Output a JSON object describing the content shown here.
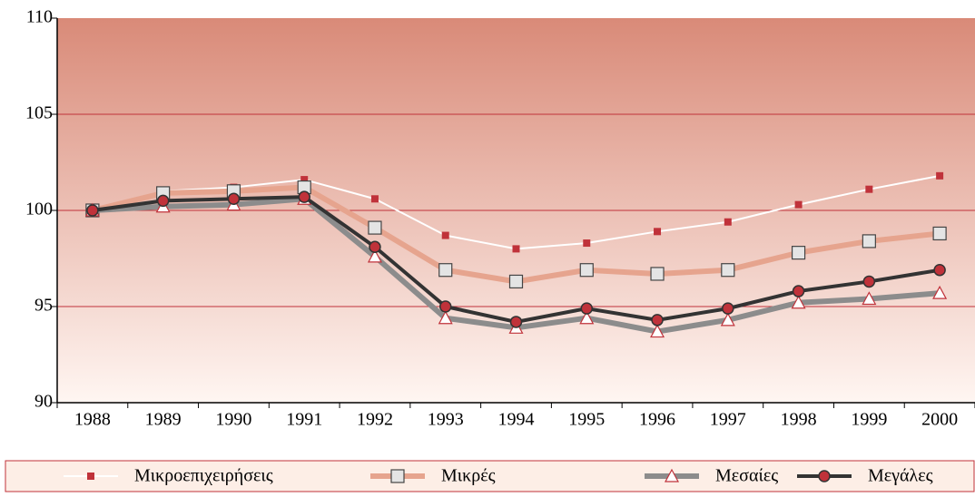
{
  "chart_data": {
    "type": "line",
    "categories": [
      "1988",
      "1989",
      "1990",
      "1991",
      "1992",
      "1993",
      "1994",
      "1995",
      "1996",
      "1997",
      "1998",
      "1999",
      "2000"
    ],
    "ylim": [
      90,
      110
    ],
    "yticks": [
      90,
      95,
      100,
      105,
      110
    ],
    "grid": true,
    "legend": "bottom",
    "series": [
      {
        "name": "Μικροεπιχειρήσεις",
        "color": "#ffffff",
        "marker": "square-filled",
        "marker_color": "#c0323a",
        "values": [
          100,
          101.0,
          101.2,
          101.6,
          100.6,
          98.7,
          98.0,
          98.3,
          98.9,
          99.4,
          100.3,
          101.1,
          101.8
        ]
      },
      {
        "name": "Μικρές",
        "color": "#e6a48e",
        "marker": "square",
        "marker_color": "#444444",
        "values": [
          100,
          100.9,
          101.0,
          101.2,
          99.1,
          96.9,
          96.3,
          96.9,
          96.7,
          96.9,
          97.8,
          98.4,
          98.8
        ]
      },
      {
        "name": "Μεσαίες",
        "color": "#8c8c8c",
        "marker": "triangle",
        "marker_color": "#c0323a",
        "values": [
          100,
          100.2,
          100.3,
          100.6,
          97.6,
          94.4,
          93.9,
          94.4,
          93.7,
          94.3,
          95.2,
          95.4,
          95.7
        ]
      },
      {
        "name": "Μεγάλες",
        "color": "#333333",
        "marker": "circle",
        "marker_color": "#c0323a",
        "values": [
          100,
          100.5,
          100.6,
          100.7,
          98.1,
          95.0,
          94.2,
          94.9,
          94.3,
          94.9,
          95.8,
          96.3,
          96.9
        ]
      }
    ]
  }
}
